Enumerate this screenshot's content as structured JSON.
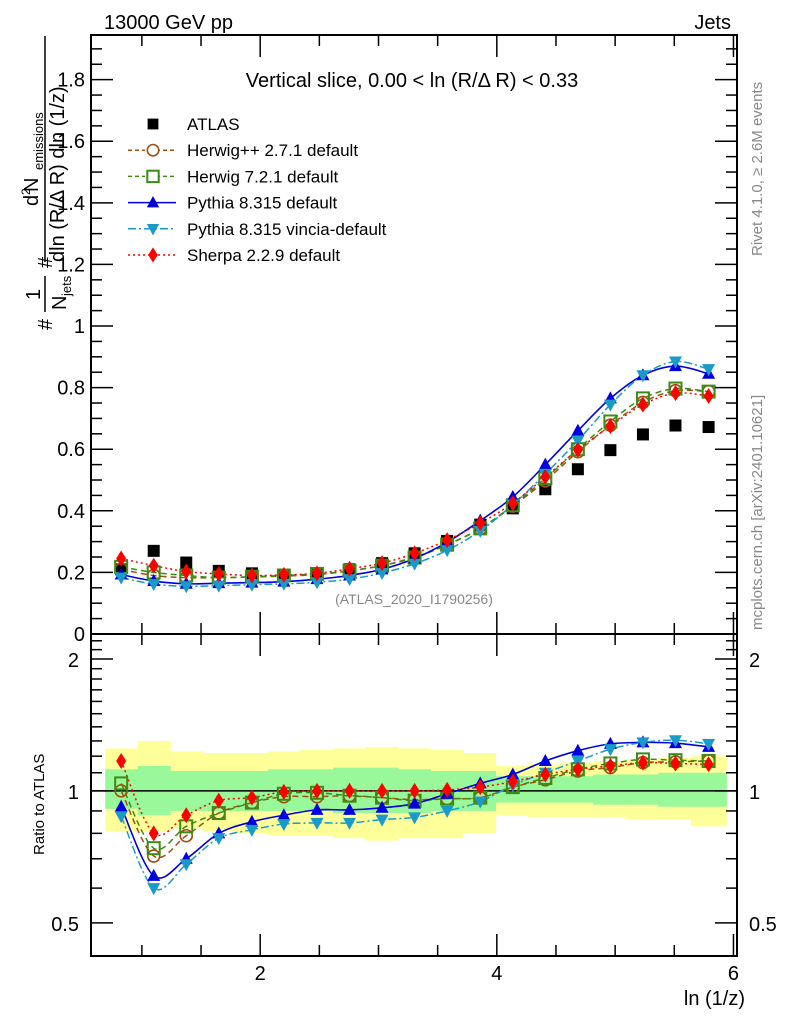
{
  "chart_data": [
    {
      "type": "scatter",
      "panel": "main",
      "header_left": "13000 GeV pp",
      "header_right": "Jets",
      "title": "Vertical slice, 0.00 < ln (R/Δ R) < 0.33",
      "ylabel": "1/N_jets d²N_emissions / dln (R/Δ R) dln (1/z)",
      "ylabel_parts": {
        "frac1_num": "1",
        "frac1_den": "N",
        "frac1_den_sub": "jets",
        "frac2_num": "d",
        "frac2_num_sup": "2",
        "frac2_num_main": " N",
        "frac2_num_sub": "emissions",
        "frac2_den": "dln (R/Δ R) dln (1/z)",
        "hash": "#"
      },
      "xlim": [
        0.57,
        6.03
      ],
      "ylim": [
        0,
        1.945
      ],
      "yticks": [
        0,
        0.2,
        0.4,
        0.6,
        0.8,
        1,
        1.2,
        1.4,
        1.6,
        1.8
      ],
      "ytick_labels": [
        "0",
        "0.2",
        "0.4",
        "0.6",
        "0.8",
        "1",
        "1.2",
        "1.4",
        "1.6",
        "1.8"
      ],
      "watermark": "(ATLAS_2020_I1790256)",
      "x": [
        0.825,
        1.1,
        1.375,
        1.65,
        1.93,
        2.2,
        2.48,
        2.755,
        3.03,
        3.305,
        3.58,
        3.86,
        4.135,
        4.41,
        4.685,
        4.96,
        5.235,
        5.51,
        5.79
      ],
      "series": [
        {
          "name": "ATLAS",
          "values": [
            0.21,
            0.27,
            0.232,
            0.205,
            0.197,
            0.193,
            0.197,
            0.21,
            0.23,
            0.262,
            0.302,
            0.355,
            0.408,
            0.47,
            0.535,
            0.597,
            0.648,
            0.677,
            0.672
          ]
        },
        {
          "name": "Herwig++ 2.7.1 default",
          "values": [
            0.21,
            0.19,
            0.183,
            0.183,
            0.185,
            0.188,
            0.193,
            0.205,
            0.222,
            0.25,
            0.29,
            0.342,
            0.415,
            0.497,
            0.592,
            0.678,
            0.752,
            0.79,
            0.787
          ]
        },
        {
          "name": "Herwig 7.2.1 default",
          "values": [
            0.218,
            0.2,
            0.19,
            0.183,
            0.186,
            0.19,
            0.195,
            0.205,
            0.222,
            0.248,
            0.29,
            0.343,
            0.418,
            0.505,
            0.6,
            0.69,
            0.765,
            0.797,
            0.787
          ]
        },
        {
          "name": "Pythia 8.315 default",
          "values": [
            0.193,
            0.172,
            0.163,
            0.165,
            0.167,
            0.17,
            0.178,
            0.19,
            0.21,
            0.245,
            0.298,
            0.368,
            0.445,
            0.55,
            0.66,
            0.765,
            0.84,
            0.87,
            0.845
          ]
        },
        {
          "name": "Pythia 8.315 vincia-default",
          "values": [
            0.183,
            0.162,
            0.155,
            0.157,
            0.16,
            0.163,
            0.168,
            0.178,
            0.198,
            0.228,
            0.272,
            0.335,
            0.42,
            0.52,
            0.628,
            0.745,
            0.84,
            0.885,
            0.86
          ]
        },
        {
          "name": "Sherpa 2.2.9 default",
          "values": [
            0.245,
            0.222,
            0.203,
            0.195,
            0.19,
            0.192,
            0.197,
            0.212,
            0.23,
            0.262,
            0.305,
            0.36,
            0.425,
            0.51,
            0.598,
            0.675,
            0.745,
            0.782,
            0.773
          ]
        }
      ]
    },
    {
      "type": "line",
      "panel": "ratio",
      "ylabel": "Ratio to ATLAS",
      "xlabel": "ln (1/z)",
      "yscale": "log",
      "ylim": [
        0.42,
        2.28
      ],
      "yticks": [
        0.5,
        1,
        2
      ],
      "ytick_labels": [
        "0.5",
        "1",
        "2"
      ],
      "xticks": [
        2,
        4,
        6
      ],
      "xtick_labels": [
        "2",
        "4",
        "6"
      ],
      "x": [
        0.825,
        1.1,
        1.375,
        1.65,
        1.93,
        2.2,
        2.48,
        2.755,
        3.03,
        3.305,
        3.58,
        3.86,
        4.135,
        4.41,
        4.685,
        4.96,
        5.235,
        5.51,
        5.79
      ],
      "bin_edges": [
        0.69,
        0.965,
        1.24,
        1.515,
        1.79,
        2.065,
        2.34,
        2.615,
        2.89,
        3.165,
        3.44,
        3.715,
        3.99,
        4.265,
        4.54,
        4.815,
        5.09,
        5.365,
        5.64,
        5.94
      ],
      "band_stat_green": [
        [
          0.91,
          1.12
        ],
        [
          0.88,
          1.14
        ],
        [
          0.9,
          1.11
        ],
        [
          0.9,
          1.11
        ],
        [
          0.9,
          1.11
        ],
        [
          0.9,
          1.12
        ],
        [
          0.9,
          1.12
        ],
        [
          0.89,
          1.13
        ],
        [
          0.89,
          1.13
        ],
        [
          0.89,
          1.12
        ],
        [
          0.9,
          1.11
        ],
        [
          0.9,
          1.11
        ],
        [
          0.94,
          1.08
        ],
        [
          0.94,
          1.08
        ],
        [
          0.94,
          1.08
        ],
        [
          0.93,
          1.09
        ],
        [
          0.93,
          1.09
        ],
        [
          0.92,
          1.1
        ],
        [
          0.92,
          1.1
        ]
      ],
      "band_total_yellow": [
        [
          0.81,
          1.25
        ],
        [
          0.81,
          1.3
        ],
        [
          0.82,
          1.23
        ],
        [
          0.81,
          1.22
        ],
        [
          0.8,
          1.22
        ],
        [
          0.79,
          1.23
        ],
        [
          0.79,
          1.24
        ],
        [
          0.78,
          1.25
        ],
        [
          0.77,
          1.26
        ],
        [
          0.78,
          1.25
        ],
        [
          0.78,
          1.24
        ],
        [
          0.8,
          1.22
        ],
        [
          0.88,
          1.14
        ],
        [
          0.87,
          1.15
        ],
        [
          0.87,
          1.16
        ],
        [
          0.87,
          1.17
        ],
        [
          0.86,
          1.18
        ],
        [
          0.86,
          1.19
        ],
        [
          0.83,
          1.2
        ]
      ],
      "series": [
        {
          "name": "Herwig++ 2.7.1 default",
          "values": [
            1.0,
            0.71,
            0.79,
            0.89,
            0.94,
            0.97,
            0.97,
            0.975,
            0.965,
            0.955,
            0.96,
            0.965,
            1.02,
            1.06,
            1.11,
            1.13,
            1.16,
            1.165,
            1.17
          ]
        },
        {
          "name": "Herwig 7.2.1 default",
          "values": [
            1.04,
            0.74,
            0.83,
            0.89,
            0.94,
            0.985,
            0.99,
            0.975,
            0.965,
            0.95,
            0.96,
            0.965,
            1.02,
            1.07,
            1.12,
            1.155,
            1.18,
            1.175,
            1.17
          ]
        },
        {
          "name": "Pythia 8.315 default",
          "values": [
            0.92,
            0.64,
            0.7,
            0.8,
            0.85,
            0.88,
            0.905,
            0.905,
            0.915,
            0.935,
            0.985,
            1.04,
            1.09,
            1.17,
            1.235,
            1.28,
            1.29,
            1.285,
            1.26
          ]
        },
        {
          "name": "Pythia 8.315 vincia-default",
          "values": [
            0.875,
            0.6,
            0.68,
            0.78,
            0.815,
            0.84,
            0.845,
            0.845,
            0.86,
            0.87,
            0.9,
            0.945,
            1.03,
            1.1,
            1.17,
            1.245,
            1.29,
            1.305,
            1.28
          ]
        },
        {
          "name": "Sherpa 2.2.9 default",
          "values": [
            1.17,
            0.8,
            0.88,
            0.95,
            0.965,
            0.995,
            1.0,
            1.0,
            1.0,
            1.0,
            1.005,
            1.02,
            1.05,
            1.09,
            1.12,
            1.14,
            1.16,
            1.155,
            1.15
          ]
        }
      ]
    }
  ],
  "legend": [
    {
      "label": "ATLAS",
      "color": "#000000",
      "marker": "square-filled",
      "line": "none"
    },
    {
      "label": "Herwig++ 2.7.1 default",
      "color": "#a05010",
      "marker": "circle-open",
      "line": "dashed"
    },
    {
      "label": "Herwig 7.2.1 default",
      "color": "#3c8c14",
      "marker": "square-open",
      "line": "dashed"
    },
    {
      "label": "Pythia 8.315 default",
      "color": "#0000e0",
      "marker": "triangle-up-filled",
      "line": "solid"
    },
    {
      "label": "Pythia 8.315 vincia-default",
      "color": "#1a9ac8",
      "marker": "triangle-down-filled",
      "line": "dashdot"
    },
    {
      "label": "Sherpa 2.2.9 default",
      "color": "#ff0000",
      "marker": "diamond-filled",
      "line": "dotted"
    }
  ],
  "side_labels": {
    "rivet": "Rivet 4.1.0, ≥ 2.6M events",
    "mcplots": "mcplots.cern.ch [arXiv:2401.10621]"
  },
  "colors": {
    "band_green": "#99f899",
    "band_yellow": "#ffff99"
  }
}
